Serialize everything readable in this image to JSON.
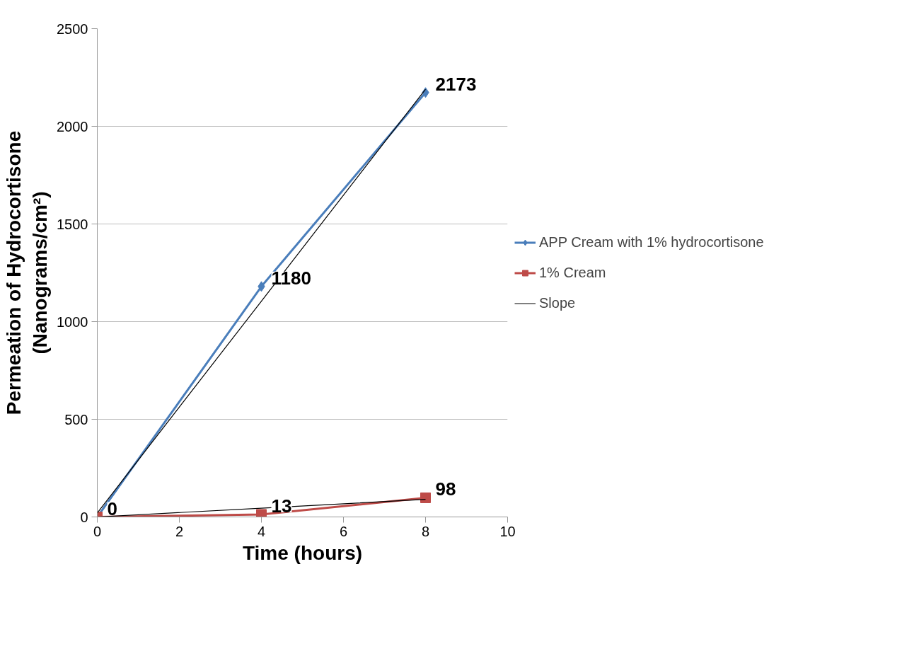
{
  "chart_data": {
    "type": "line",
    "xlabel": "Time (hours)",
    "ylabel": "Permeation of Hydrocortisone\n(Nanograms/cm²)",
    "x": [
      0,
      4,
      8
    ],
    "series": [
      {
        "name": "APP Cream with 1% hydrocortisone",
        "color": "#4a7ebb",
        "values": [
          0,
          1180,
          2173
        ],
        "marker": "diamond",
        "value_labels": [
          null,
          "1180",
          "2173"
        ]
      },
      {
        "name": "1% Cream",
        "color": "#be4b48",
        "values": [
          0,
          13,
          98
        ],
        "marker": "square",
        "value_labels": [
          "0",
          "13",
          "98"
        ]
      },
      {
        "name": "Slope",
        "color": "#000000",
        "values": [
          20,
          1105,
          2190
        ],
        "marker": "none"
      },
      {
        "color": "#000000",
        "values": [
          0,
          45,
          90
        ],
        "marker": "none"
      }
    ],
    "xlim": [
      0,
      10
    ],
    "xticks": [
      0,
      2,
      4,
      6,
      8,
      10
    ],
    "ylim": [
      0,
      2500
    ],
    "yticks": [
      0,
      500,
      1000,
      1500,
      2000,
      2500
    ],
    "grid": "y",
    "legend": "right"
  }
}
